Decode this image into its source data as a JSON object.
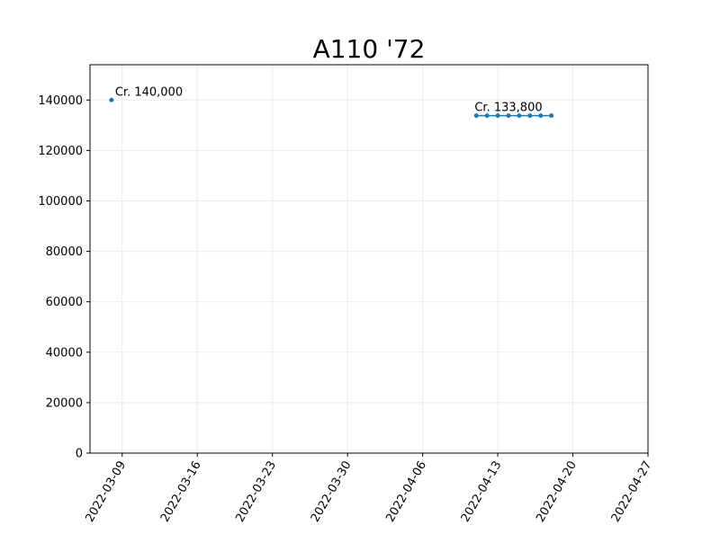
{
  "chart_data": {
    "type": "line",
    "title": "A110 '72",
    "xlabel": "",
    "ylabel": "",
    "ylim": [
      0,
      154000
    ],
    "xlim": [
      "2022-03-06",
      "2022-04-27"
    ],
    "x_ticks": [
      "2022-03-09",
      "2022-03-16",
      "2022-03-23",
      "2022-03-30",
      "2022-04-06",
      "2022-04-13",
      "2022-04-20",
      "2022-04-27"
    ],
    "y_ticks": [
      0,
      20000,
      40000,
      60000,
      80000,
      100000,
      120000,
      140000
    ],
    "grid": true,
    "series": [
      {
        "color": "#1f77b4",
        "segments": [
          [
            {
              "x": "2022-03-08",
              "y": 140000
            }
          ],
          [
            {
              "x": "2022-04-11",
              "y": 133800
            },
            {
              "x": "2022-04-12",
              "y": 133800
            },
            {
              "x": "2022-04-13",
              "y": 133800
            },
            {
              "x": "2022-04-14",
              "y": 133800
            },
            {
              "x": "2022-04-15",
              "y": 133800
            },
            {
              "x": "2022-04-16",
              "y": 133800
            },
            {
              "x": "2022-04-17",
              "y": 133800
            },
            {
              "x": "2022-04-18",
              "y": 133800
            }
          ]
        ]
      }
    ],
    "annotations": [
      {
        "text": "Cr. 140,000",
        "x": "2022-03-08",
        "y": 140000
      },
      {
        "text": "Cr. 133,800",
        "x": "2022-04-14",
        "y": 133800
      }
    ]
  }
}
